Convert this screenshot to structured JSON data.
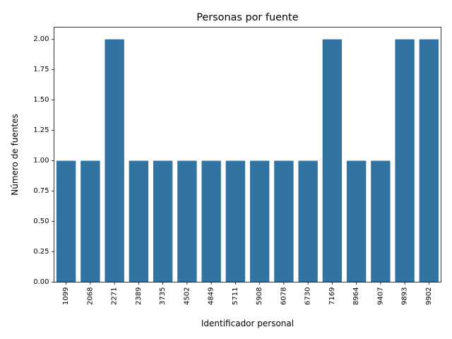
{
  "chart_data": {
    "type": "bar",
    "title": "Personas por fuente",
    "xlabel": "Identificador personal",
    "ylabel": "Número de fuentes",
    "categories": [
      "1099",
      "2068",
      "2271",
      "2389",
      "3735",
      "4502",
      "4849",
      "5711",
      "5908",
      "6078",
      "6730",
      "7169",
      "8964",
      "9407",
      "9893",
      "9902"
    ],
    "values": [
      1,
      1,
      2,
      1,
      1,
      1,
      1,
      1,
      1,
      1,
      1,
      2,
      1,
      1,
      2,
      2
    ],
    "ylim": [
      0,
      2.1
    ],
    "yticks": [
      "0.00",
      "0.25",
      "0.50",
      "0.75",
      "1.00",
      "1.25",
      "1.50",
      "1.75",
      "2.00"
    ],
    "grid": false,
    "legend": "none",
    "bar_color": "#3274a1"
  }
}
